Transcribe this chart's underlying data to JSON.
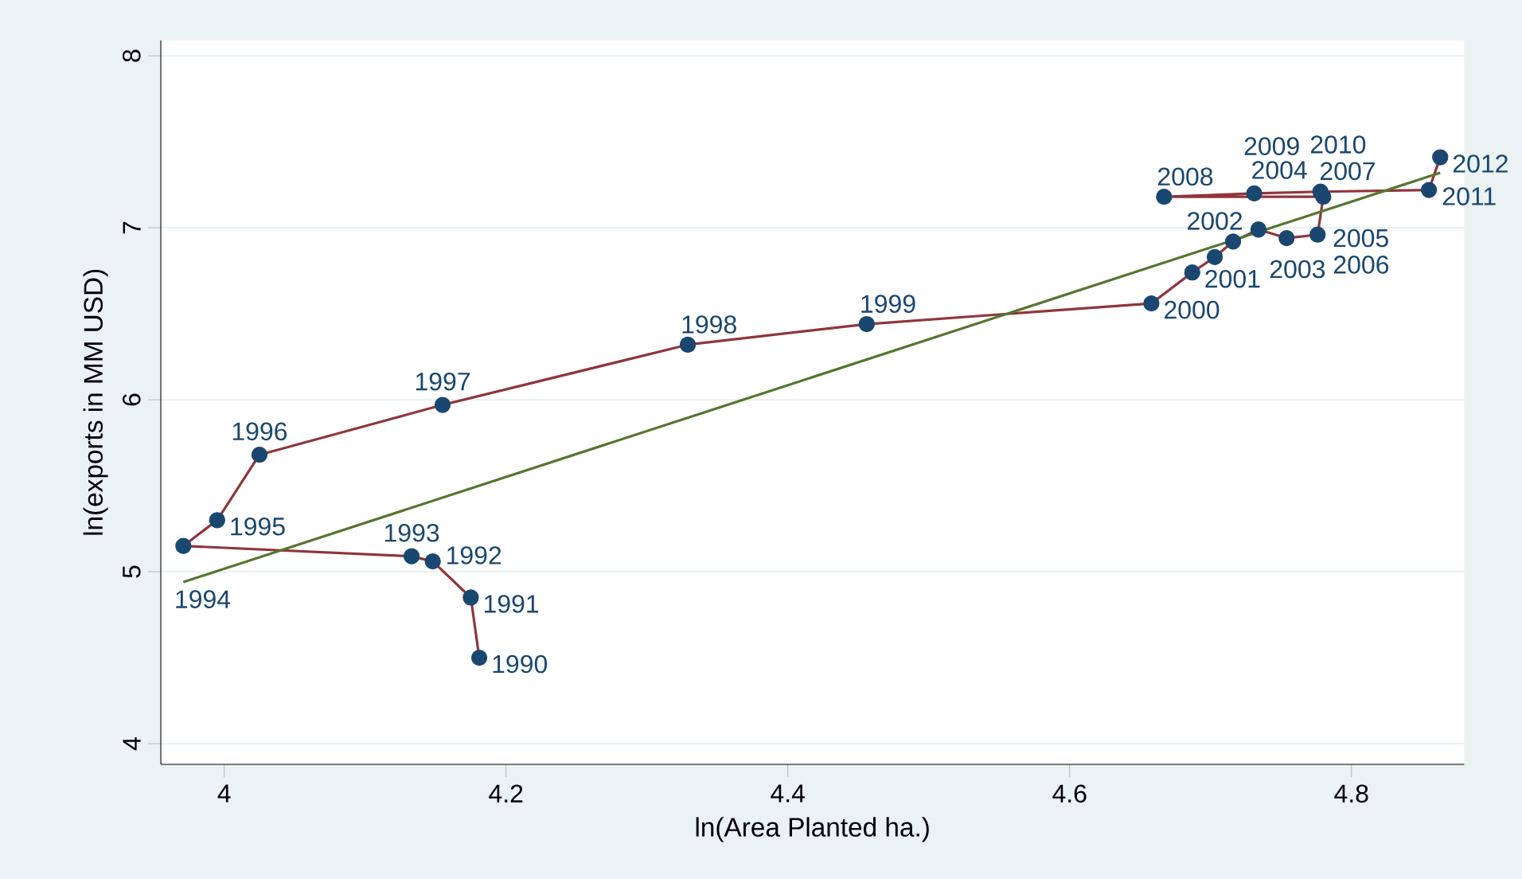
{
  "chart_data": {
    "type": "line",
    "xlabel": "ln(Area Planted ha.)",
    "ylabel": "ln(exports in MM USD)",
    "xlim": [
      3.955,
      4.88
    ],
    "ylim": [
      3.88,
      8.09
    ],
    "xticks": [
      4,
      4.2,
      4.4,
      4.6,
      4.8
    ],
    "yticks": [
      4,
      5,
      6,
      7,
      8
    ],
    "grid": "y",
    "series": [
      {
        "color": "#90353b",
        "marker": "none",
        "x": [
          4.181,
          4.175,
          4.148,
          4.133,
          3.971,
          3.995,
          4.025,
          4.155,
          4.329,
          4.456,
          4.658,
          4.687,
          4.703,
          4.716,
          4.734,
          4.754,
          4.776,
          4.78,
          4.667,
          4.731,
          4.778,
          4.855,
          4.863
        ],
        "values": [
          4.5,
          4.85,
          5.06,
          5.09,
          5.15,
          5.3,
          5.68,
          5.97,
          6.32,
          6.44,
          6.56,
          6.74,
          6.83,
          6.92,
          6.99,
          6.94,
          6.96,
          7.18,
          7.18,
          7.2,
          7.21,
          7.22,
          7.41
        ]
      },
      {
        "type": "scatter",
        "color": "#1a476f",
        "marker": "circle",
        "x": [
          4.181,
          4.175,
          4.148,
          4.133,
          3.971,
          3.995,
          4.025,
          4.155,
          4.329,
          4.456,
          4.658,
          4.687,
          4.703,
          4.716,
          4.734,
          4.754,
          4.776,
          4.78,
          4.667,
          4.731,
          4.778,
          4.855,
          4.863
        ],
        "values": [
          4.5,
          4.85,
          5.06,
          5.09,
          5.15,
          5.3,
          5.68,
          5.97,
          6.32,
          6.44,
          6.56,
          6.74,
          6.83,
          6.92,
          6.99,
          6.94,
          6.96,
          7.18,
          7.18,
          7.2,
          7.21,
          7.22,
          7.41
        ]
      },
      {
        "type": "line",
        "color": "#55752f",
        "marker": "none",
        "x": [
          3.971,
          4.863
        ],
        "values": [
          4.94,
          7.32
        ]
      }
    ],
    "annotations": [
      {
        "text": "1990",
        "x": 4.181,
        "y": 4.5
      },
      {
        "text": "1991",
        "x": 4.175,
        "y": 4.85
      },
      {
        "text": "1992",
        "x": 4.148,
        "y": 5.06
      },
      {
        "text": "1993",
        "x": 4.133,
        "y": 5.09
      },
      {
        "text": "1994",
        "x": 3.971,
        "y": 5.15
      },
      {
        "text": "1995",
        "x": 3.995,
        "y": 5.3
      },
      {
        "text": "1996",
        "x": 4.025,
        "y": 5.68
      },
      {
        "text": "1997",
        "x": 4.155,
        "y": 5.97
      },
      {
        "text": "1998",
        "x": 4.329,
        "y": 6.32
      },
      {
        "text": "1999",
        "x": 4.456,
        "y": 6.44
      },
      {
        "text": "2000",
        "x": 4.658,
        "y": 6.56
      },
      {
        "text": "2001",
        "x": 4.687,
        "y": 6.74
      },
      {
        "text": "2002",
        "x": 4.703,
        "y": 6.83
      },
      {
        "text": "2003",
        "x": 4.716,
        "y": 6.92
      },
      {
        "text": "2004",
        "x": 4.734,
        "y": 6.99
      },
      {
        "text": "2005",
        "x": 4.754,
        "y": 6.94
      },
      {
        "text": "2006",
        "x": 4.776,
        "y": 6.96
      },
      {
        "text": "2007",
        "x": 4.78,
        "y": 7.18
      },
      {
        "text": "2008",
        "x": 4.667,
        "y": 7.18
      },
      {
        "text": "2009",
        "x": 4.731,
        "y": 7.2
      },
      {
        "text": "2010",
        "x": 4.778,
        "y": 7.21
      },
      {
        "text": "2011",
        "x": 4.855,
        "y": 7.22
      },
      {
        "text": "2012",
        "x": 4.863,
        "y": 7.41
      }
    ]
  }
}
